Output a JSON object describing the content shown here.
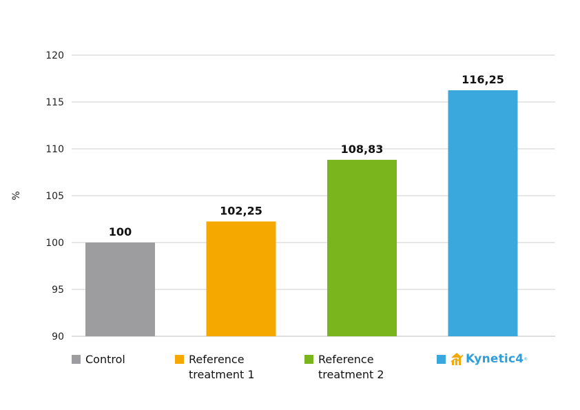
{
  "chart_data": {
    "type": "bar",
    "categories": [
      "Control",
      "Reference treatment 1",
      "Reference treatment 2",
      "Kynetic4"
    ],
    "values": [
      100,
      102.25,
      108.83,
      116.25
    ],
    "data_labels": [
      "100",
      "102,25",
      "108,83",
      "116,25"
    ],
    "colors": [
      "#9d9d9f",
      "#f5a800",
      "#7ab51d",
      "#3aa8dd"
    ],
    "ylabel": "%",
    "ylim": [
      90,
      120
    ],
    "yticks": [
      90,
      95,
      100,
      105,
      110,
      115,
      120
    ],
    "grid": true,
    "legend_position": "bottom"
  },
  "legend": {
    "items": [
      {
        "label": "Control",
        "color": "#9d9d9f"
      },
      {
        "label": "Reference\ntreatment 1",
        "color": "#f5a800"
      },
      {
        "label": "Reference\ntreatment 2",
        "color": "#7ab51d"
      },
      {
        "label": "Kynetic4",
        "color": "#3aa8dd",
        "logo": "kynetic4-logo",
        "icon": "growth-bars-icon",
        "mark": "®"
      }
    ]
  }
}
